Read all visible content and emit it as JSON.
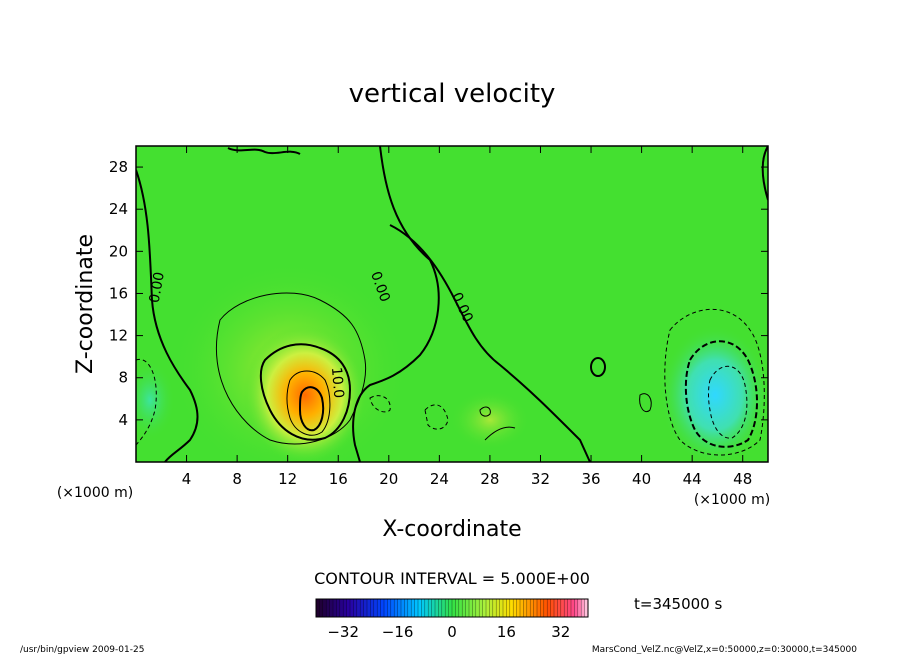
{
  "chart_data": {
    "type": "heatmap",
    "title": "vertical velocity",
    "xlabel": "X-coordinate",
    "ylabel": "Z-coordinate",
    "x_unit": "(×1000 m)",
    "x_unit_right": "(×1000 m)",
    "xlim": [
      0,
      50
    ],
    "ylim": [
      0,
      30
    ],
    "x_ticks": [
      4,
      8,
      12,
      16,
      20,
      24,
      28,
      32,
      36,
      40,
      44,
      48
    ],
    "y_ticks": [
      4,
      8,
      12,
      16,
      20,
      24,
      28
    ],
    "contour_interval_label": "CONTOUR INTERVAL = 5.000E+00",
    "time_label": "t=345000 s",
    "colorbar": {
      "range": [
        -40,
        40
      ],
      "ticks": [
        -32,
        -16,
        0,
        16,
        32
      ]
    },
    "contour_labels": [
      {
        "text": "0.00",
        "x": 2.0,
        "y": 16.5,
        "angle": -80
      },
      {
        "text": "0.00",
        "x": 19.0,
        "y": 16.5,
        "angle": 70
      },
      {
        "text": "0.00",
        "x": 25.5,
        "y": 14.5,
        "angle": 65
      },
      {
        "text": "10.0",
        "x": 15.6,
        "y": 7.5,
        "angle": 85
      }
    ],
    "features": [
      {
        "name": "updraft",
        "x": 14,
        "z": 5,
        "peak": 30
      },
      {
        "name": "downdraft",
        "x": 47,
        "z": 6,
        "peak": -14
      }
    ]
  },
  "footer": {
    "left": "/usr/bin/gpview   2009-01-25",
    "right": "MarsCond_VelZ.nc@VelZ,x=0:50000,z=0:30000,t=345000"
  }
}
